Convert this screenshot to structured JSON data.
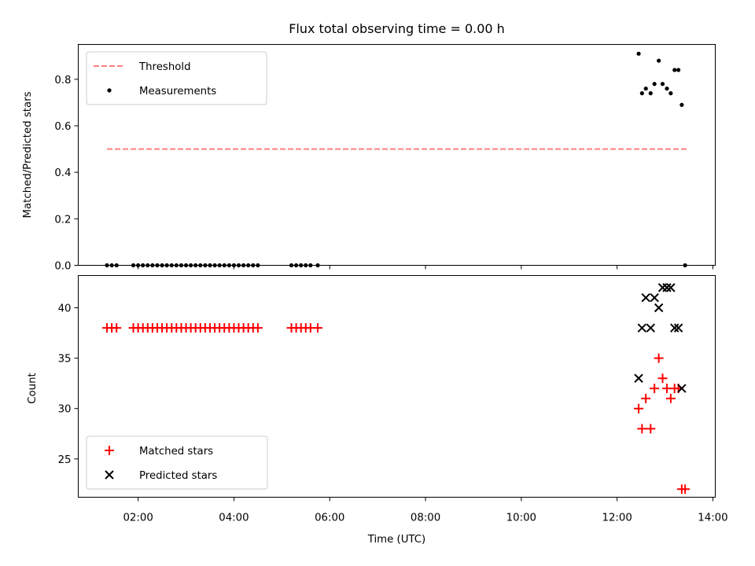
{
  "chart_data": [
    {
      "type": "scatter",
      "title": "Flux total observing time = 0.00 h",
      "xlabel": "",
      "ylabel": "Matched/Predicted stars",
      "xlim": [
        0.75,
        14.05
      ],
      "ylim": [
        0.0,
        0.95
      ],
      "yticks": [
        0.0,
        0.2,
        0.4,
        0.6,
        0.8
      ],
      "ytick_labels": [
        "0.0",
        "0.2",
        "0.4",
        "0.6",
        "0.8"
      ],
      "legend_position": "top-left",
      "grid": false,
      "threshold": {
        "name": "Threshold",
        "value": 0.5,
        "x_range": [
          1.35,
          13.45
        ],
        "color": "#ff7f7f",
        "style": "dashed"
      },
      "series": [
        {
          "name": "Measurements",
          "color": "#000000",
          "marker": "dot",
          "x": [
            1.35,
            1.45,
            1.55,
            1.9,
            2.0,
            2.1,
            2.2,
            2.3,
            2.4,
            2.5,
            2.6,
            2.7,
            2.8,
            2.9,
            3.0,
            3.1,
            3.2,
            3.3,
            3.4,
            3.5,
            3.6,
            3.7,
            3.8,
            3.9,
            4.0,
            4.1,
            4.2,
            4.3,
            4.4,
            4.5,
            5.2,
            5.3,
            5.4,
            5.5,
            5.6,
            5.75,
            12.45,
            12.52,
            12.6,
            12.7,
            12.78,
            12.87,
            12.95,
            13.04,
            13.12,
            13.2,
            13.28,
            13.35,
            13.42
          ],
          "y": [
            0,
            0,
            0,
            0,
            0,
            0,
            0,
            0,
            0,
            0,
            0,
            0,
            0,
            0,
            0,
            0,
            0,
            0,
            0,
            0,
            0,
            0,
            0,
            0,
            0,
            0,
            0,
            0,
            0,
            0,
            0,
            0,
            0,
            0,
            0,
            0,
            0.91,
            0.74,
            0.76,
            0.74,
            0.78,
            0.88,
            0.78,
            0.76,
            0.74,
            0.84,
            0.84,
            0.69,
            0.0
          ]
        }
      ]
    },
    {
      "type": "scatter",
      "title": "",
      "xlabel": "Time (UTC)",
      "ylabel": "Count",
      "xlim": [
        0.75,
        14.05
      ],
      "ylim": [
        21.2,
        43.2
      ],
      "xticks": [
        2,
        4,
        6,
        8,
        10,
        12,
        14
      ],
      "xtick_labels": [
        "02:00",
        "04:00",
        "06:00",
        "08:00",
        "10:00",
        "12:00",
        "14:00"
      ],
      "yticks": [
        25,
        30,
        35,
        40
      ],
      "ytick_labels": [
        "25",
        "30",
        "35",
        "40"
      ],
      "legend_position": "bottom-left",
      "grid": false,
      "series": [
        {
          "name": "Matched stars",
          "color": "#ff0000",
          "marker": "plus",
          "x": [
            1.35,
            1.45,
            1.55,
            1.9,
            2.0,
            2.1,
            2.2,
            2.3,
            2.4,
            2.5,
            2.6,
            2.7,
            2.8,
            2.9,
            3.0,
            3.1,
            3.2,
            3.3,
            3.4,
            3.5,
            3.6,
            3.7,
            3.8,
            3.9,
            4.0,
            4.1,
            4.2,
            4.3,
            4.4,
            4.5,
            5.2,
            5.3,
            5.4,
            5.5,
            5.6,
            5.75,
            12.45,
            12.52,
            12.6,
            12.7,
            12.78,
            12.87,
            12.95,
            13.04,
            13.12,
            13.2,
            13.28,
            13.35,
            13.42
          ],
          "y": [
            38,
            38,
            38,
            38,
            38,
            38,
            38,
            38,
            38,
            38,
            38,
            38,
            38,
            38,
            38,
            38,
            38,
            38,
            38,
            38,
            38,
            38,
            38,
            38,
            38,
            38,
            38,
            38,
            38,
            38,
            38,
            38,
            38,
            38,
            38,
            38,
            30,
            28,
            31,
            28,
            32,
            35,
            33,
            32,
            31,
            32,
            32,
            22,
            22
          ]
        },
        {
          "name": "Predicted stars",
          "color": "#000000",
          "marker": "x",
          "x": [
            12.45,
            12.52,
            12.6,
            12.7,
            12.78,
            12.87,
            12.95,
            13.04,
            13.12,
            13.2,
            13.28,
            13.35
          ],
          "y": [
            33,
            38,
            41,
            38,
            41,
            40,
            42,
            42,
            42,
            38,
            38,
            32
          ]
        }
      ]
    }
  ]
}
